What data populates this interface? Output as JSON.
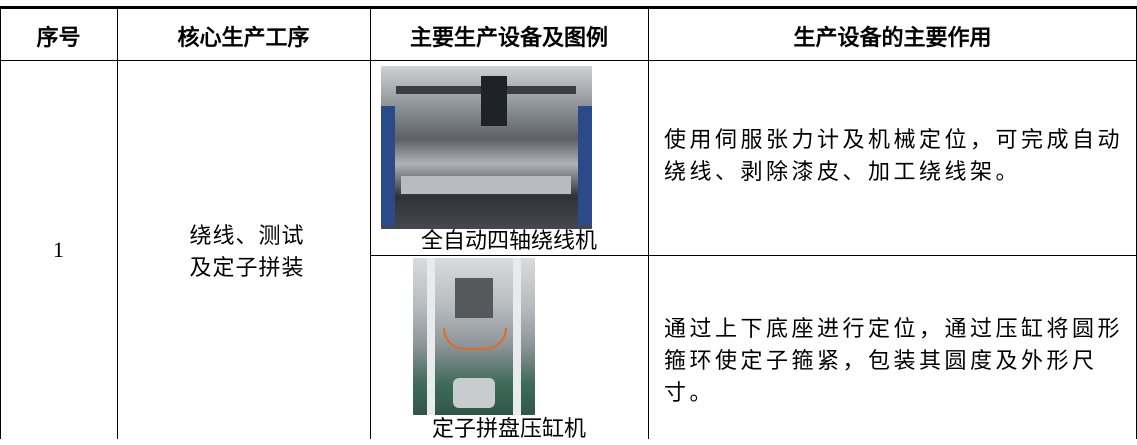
{
  "table": {
    "headers": [
      "序号",
      "核心生产工序",
      "主要生产设备及图例",
      "生产设备的主要作用"
    ],
    "rows": [
      {
        "index": "1",
        "process": "绕线、测试及定子拼装",
        "equipment": [
          {
            "caption": "全自动四轴绕线机",
            "function": "使用伺服张力计及机械定位，可完成自动绕线、剥除漆皮、加工绕线架。"
          },
          {
            "caption": "定子拼盘压缸机",
            "function": "通过上下底座进行定位，通过压缸将圆形箍环使定子箍紧，包装其圆度及外形尺寸。"
          }
        ]
      }
    ]
  }
}
